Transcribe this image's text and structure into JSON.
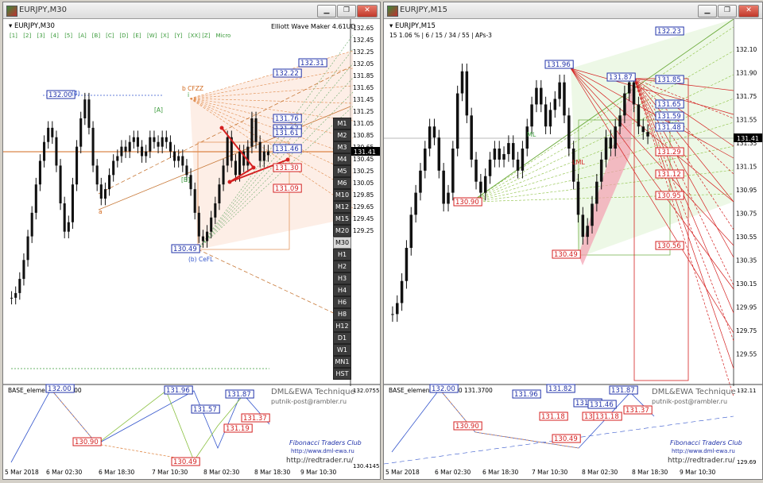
{
  "left_window": {
    "title": "EURJPY,M30",
    "chart_label": "EURJPY,M30",
    "indicator_label": "Elliott Wave Maker 4.61UD",
    "wave_buttons": [
      "[1]",
      "[2]",
      "[3]",
      "[4]",
      "[5]",
      "[A]",
      "[B]",
      "[C]",
      "[D]",
      "[E]",
      "[W]",
      "[X]",
      "[Y]",
      "[XX]",
      "[Z]",
      "Micro"
    ],
    "wave_labels": [
      "(4)",
      "[A]",
      "[B]",
      "b CFZZ",
      "(b) CeFL",
      "a",
      "i"
    ],
    "price_boxes": {
      "blue": [
        "132.00",
        "130.49",
        "132.31",
        "132.22",
        "131.76",
        "131.67",
        "131.61",
        "131.46"
      ],
      "red": [
        "131.30",
        "131.09"
      ]
    },
    "current_price": "131.41",
    "y_ticks": [
      "132.65",
      "132.45",
      "132.25",
      "132.05",
      "131.85",
      "131.65",
      "131.45",
      "131.25",
      "131.05",
      "130.85",
      "130.65",
      "130.45",
      "130.25",
      "130.05",
      "129.85",
      "129.65",
      "129.45",
      "129.25"
    ],
    "x_ticks": [
      "5 Mar 2018",
      "6 Mar 02:30",
      "6 Mar 18:30",
      "7 Mar 10:30",
      "8 Mar 02:30",
      "8 Mar 18:30",
      "9 Mar 10:30"
    ],
    "timeframes": [
      "M1",
      "M2",
      "M3",
      "M4",
      "M5",
      "M6",
      "M10",
      "M12",
      "M15",
      "M20",
      "M30",
      "H1",
      "H2",
      "H3",
      "H4",
      "H6",
      "H8",
      "H12",
      "D1",
      "W1",
      "MN1",
      "HST"
    ],
    "selected_tf": "M30",
    "sub": {
      "label": "BASE_element",
      "value_text": "131.3700",
      "boxes_blue": [
        "132.00",
        "131.96",
        "131.87",
        "131.57"
      ],
      "boxes_red": [
        "130.90",
        "130.49",
        "131.19",
        "131.37"
      ],
      "scale_top": "132.0755",
      "scale_bottom": "130.4145",
      "brand1": "DML&EWA Technique",
      "brand2": "putnik-post@rambler.ru",
      "club": "Fibonacci Traders Club",
      "club_url": "http://www.dml-ewa.ru",
      "site": "http://redtrader.ru/"
    },
    "chart_data": {
      "type": "line",
      "series": [
        {
          "values": [
            129.9,
            129.95,
            130.1,
            130.3,
            130.55,
            130.8,
            131.1,
            131.35,
            131.55,
            131.7,
            131.6,
            131.3,
            130.9,
            130.6,
            130.7,
            131.1,
            131.5,
            131.8,
            132.0,
            131.7,
            131.3,
            131.1,
            130.95,
            131.05,
            131.2,
            131.35,
            131.4,
            131.5,
            131.45,
            131.55,
            131.6,
            131.5,
            131.4,
            131.45,
            131.6,
            131.55,
            131.5,
            131.6,
            131.55,
            131.45,
            131.35,
            131.4,
            131.3,
            131.2,
            131.05,
            130.8,
            130.55,
            130.5,
            130.6,
            130.75,
            130.9,
            131.1,
            131.3,
            131.6,
            131.35,
            131.2,
            131.45,
            131.3,
            131.5,
            131.8,
            131.55,
            131.35,
            131.45,
            131.41
          ]
        }
      ],
      "ylim": [
        129.15,
        132.7
      ]
    }
  },
  "right_window": {
    "title": "EURJPY,M15",
    "chart_label": "EURJPY,M15",
    "info_line": "15  1.06 %  |  6 / 15 / 34 / 55  |  APs-3",
    "price_boxes": {
      "blue": [
        "132.23",
        "131.96",
        "131.87",
        "131.85",
        "131.65",
        "131.59",
        "131.48"
      ],
      "red": [
        "131.29",
        "131.12",
        "130.95",
        "130.90",
        "130.56",
        "130.49"
      ]
    },
    "fib_labels": [
      "ML",
      "LML"
    ],
    "current_price": "131.41",
    "y_ticks": [
      "132.10",
      "131.90",
      "131.75",
      "131.55",
      "131.35",
      "131.15",
      "130.95",
      "130.75",
      "130.55",
      "130.35",
      "130.15",
      "129.95",
      "129.75",
      "129.55"
    ],
    "x_ticks": [
      "5 Mar 2018",
      "6 Mar 02:30",
      "6 Mar 18:30",
      "7 Mar 10:30",
      "8 Mar 02:30",
      "8 Mar 18:30",
      "9 Mar 10:30"
    ],
    "sub": {
      "label": "BASE_element",
      "value_text": "131.3700  131.3700",
      "boxes_blue": [
        "132.00",
        "131.96",
        "131.82",
        "131.87",
        "131.57",
        "131.46"
      ],
      "boxes_red": [
        "131.18",
        "130.90",
        "131.16",
        "131.18",
        "131.37",
        "130.49"
      ],
      "scale_top": "132.11",
      "scale_bottom": "129.69",
      "brand1": "DML&EWA Technique",
      "brand2": "putnik-post@rambler.ru",
      "club": "Fibonacci Traders Club",
      "club_url": "http://www.dml-ewa.ru",
      "site": "http://redtrader.ru/"
    },
    "chart_data": {
      "type": "line",
      "series": [
        {
          "values": [
            129.8,
            129.9,
            130.1,
            130.4,
            130.7,
            130.9,
            131.1,
            131.3,
            131.5,
            131.4,
            131.1,
            130.8,
            130.9,
            131.3,
            131.8,
            132.0,
            131.6,
            131.2,
            131.0,
            130.9,
            131.05,
            131.2,
            131.3,
            131.2,
            131.25,
            131.35,
            131.2,
            131.1,
            131.3,
            131.5,
            131.7,
            131.85,
            131.7,
            131.5,
            131.65,
            131.75,
            131.9,
            131.6,
            131.3,
            131.0,
            130.7,
            130.5,
            130.6,
            130.8,
            131.0,
            131.2,
            131.4,
            131.3,
            131.5,
            131.6,
            131.8,
            131.9,
            131.7,
            131.5,
            131.45,
            131.41
          ]
        }
      ],
      "ylim": [
        129.45,
        132.2
      ]
    }
  }
}
